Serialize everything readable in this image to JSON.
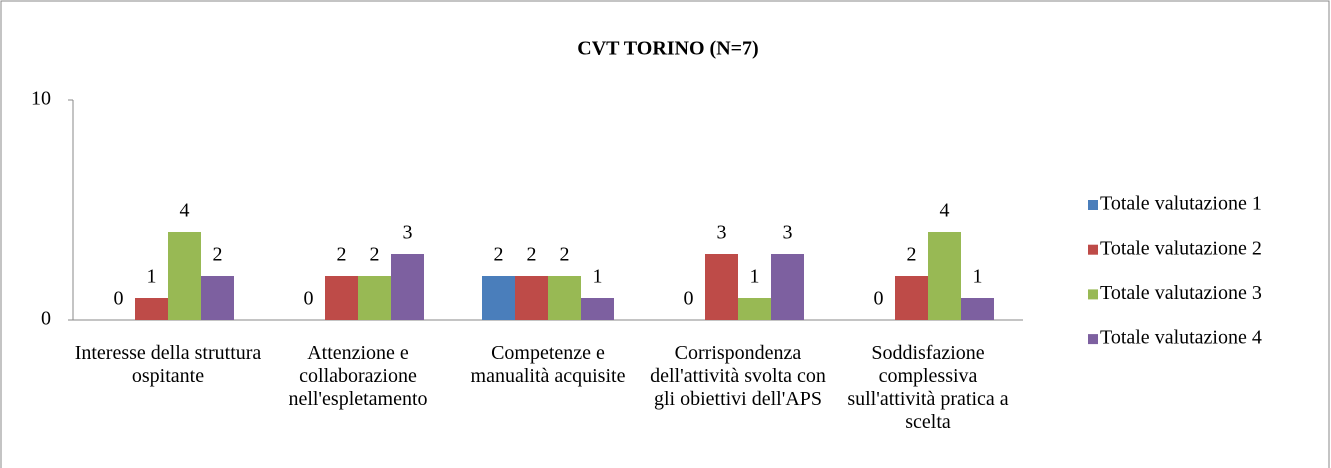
{
  "chart_data": {
    "type": "bar",
    "title": "CVT TORINO (N=7)",
    "categories": [
      "Interesse della struttura ospitante",
      "Attenzione e collaborazione nell'espletamento",
      "Competenze e manualità acquisite",
      "Corrispondenza dell'attività svolta con gli obiettivi dell'APS",
      "Soddisfazione complessiva sull'attività pratica a scelta"
    ],
    "series": [
      {
        "name": "Totale valutazione 1",
        "color": "#4a7ebb",
        "values": [
          0,
          0,
          2,
          0,
          0
        ]
      },
      {
        "name": "Totale valutazione 2",
        "color": "#be4b48",
        "values": [
          1,
          2,
          2,
          3,
          2
        ]
      },
      {
        "name": "Totale valutazione 3",
        "color": "#98b954",
        "values": [
          4,
          2,
          2,
          1,
          4
        ]
      },
      {
        "name": "Totale valutazione 4",
        "color": "#7d60a0",
        "values": [
          2,
          3,
          1,
          3,
          1
        ]
      }
    ],
    "ylim": [
      0,
      10
    ],
    "yticks": [
      0,
      10
    ],
    "grid": false,
    "legend": "right"
  }
}
